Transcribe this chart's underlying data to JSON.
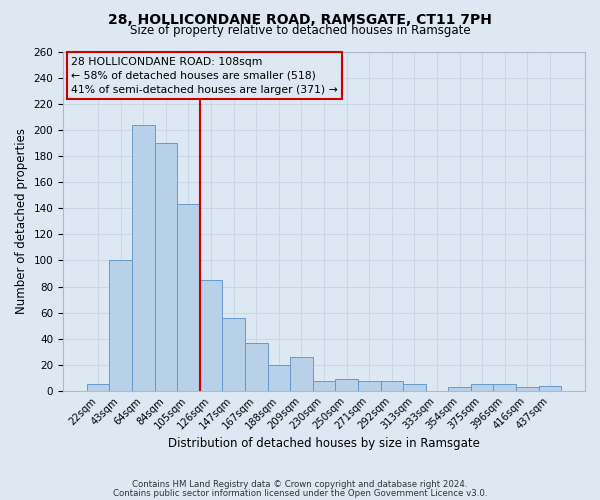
{
  "title": "28, HOLLICONDANE ROAD, RAMSGATE, CT11 7PH",
  "subtitle": "Size of property relative to detached houses in Ramsgate",
  "xlabel": "Distribution of detached houses by size in Ramsgate",
  "ylabel": "Number of detached properties",
  "bar_labels": [
    "22sqm",
    "43sqm",
    "64sqm",
    "84sqm",
    "105sqm",
    "126sqm",
    "147sqm",
    "167sqm",
    "188sqm",
    "209sqm",
    "230sqm",
    "250sqm",
    "271sqm",
    "292sqm",
    "313sqm",
    "333sqm",
    "354sqm",
    "375sqm",
    "396sqm",
    "416sqm",
    "437sqm"
  ],
  "bar_values": [
    5,
    100,
    204,
    190,
    143,
    85,
    56,
    37,
    20,
    26,
    8,
    9,
    8,
    8,
    5,
    0,
    3,
    5,
    5,
    3,
    4
  ],
  "bar_color": "#b8d0e8",
  "bar_edgecolor": "#6699cc",
  "bar_width": 1.0,
  "vline_color": "#cc0000",
  "ylim": [
    0,
    260
  ],
  "yticks": [
    0,
    20,
    40,
    60,
    80,
    100,
    120,
    140,
    160,
    180,
    200,
    220,
    240,
    260
  ],
  "annotation_title": "28 HOLLICONDANE ROAD: 108sqm",
  "annotation_line1": "← 58% of detached houses are smaller (518)",
  "annotation_line2": "41% of semi-detached houses are larger (371) →",
  "annotation_box_edgecolor": "#cc0000",
  "grid_color": "#c8d8e8",
  "background_color": "#dde8f2",
  "footer1": "Contains HM Land Registry data © Crown copyright and database right 2024.",
  "footer2": "Contains public sector information licensed under the Open Government Licence v3.0."
}
